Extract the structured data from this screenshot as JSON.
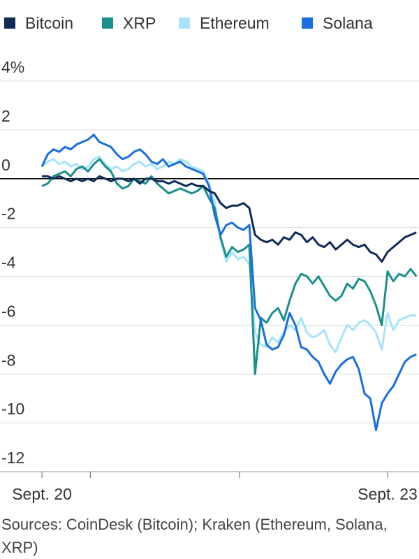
{
  "chart_data": {
    "type": "line",
    "source": "Sources: CoinDesk (Bitcoin); Kraken (Ethereum, Solana, XRP)",
    "x": [
      0,
      0.05,
      0.1,
      0.15,
      0.2,
      0.25,
      0.3,
      0.35,
      0.4,
      0.45,
      0.5,
      0.55,
      0.6,
      0.65,
      0.7,
      0.75,
      0.8,
      0.85,
      0.9,
      0.95,
      1,
      1.05,
      1.1,
      1.15,
      1.2,
      1.25,
      1.3,
      1.35,
      1.4,
      1.45,
      1.5,
      1.55,
      1.6,
      1.65,
      1.7,
      1.75,
      1.8,
      1.85,
      1.9,
      1.95,
      2,
      2.05,
      2.1,
      2.15,
      2.2,
      2.25,
      2.3,
      2.35,
      2.4,
      2.45,
      2.5,
      2.55,
      2.6,
      2.65,
      2.7,
      2.75,
      2.8,
      2.85,
      2.9,
      2.95,
      3,
      3.05,
      3.1,
      3.15,
      3.2,
      3.25
    ],
    "series": [
      {
        "name": "Bitcoin",
        "color": "#0d2b55",
        "values": [
          0.1,
          0.1,
          0.0,
          0.1,
          0.0,
          -0.1,
          0.0,
          -0.1,
          0.0,
          -0.1,
          0.1,
          0.0,
          -0.1,
          0.0,
          0.0,
          -0.1,
          0.0,
          -0.2,
          0.0,
          0.0,
          -0.1,
          -0.1,
          -0.2,
          -0.1,
          -0.2,
          -0.3,
          -0.2,
          -0.3,
          -0.3,
          -0.5,
          -0.6,
          -1.0,
          -1.2,
          -1.1,
          -1.1,
          -1.0,
          -1.2,
          -2.3,
          -2.5,
          -2.6,
          -2.5,
          -2.7,
          -2.4,
          -2.5,
          -2.2,
          -2.3,
          -2.6,
          -2.4,
          -2.7,
          -2.8,
          -2.6,
          -2.9,
          -2.7,
          -2.5,
          -2.7,
          -2.8,
          -2.7,
          -3.0,
          -3.1,
          -3.4,
          -3.0,
          -2.8,
          -2.6,
          -2.4,
          -2.3,
          -2.2
        ]
      },
      {
        "name": "XRP",
        "color": "#1a8f8a",
        "values": [
          -0.3,
          -0.2,
          0.1,
          0.2,
          0.3,
          0.1,
          0.4,
          0.5,
          0.3,
          0.6,
          0.8,
          0.5,
          0.3,
          -0.2,
          -0.4,
          -0.3,
          0.0,
          -0.1,
          -0.2,
          0.1,
          -0.2,
          -0.4,
          -0.6,
          -0.5,
          -0.4,
          -0.5,
          -0.6,
          -0.5,
          -0.3,
          -0.8,
          -1.2,
          -2.4,
          -3.2,
          -2.8,
          -3.0,
          -2.9,
          -2.7,
          -8.0,
          -5.7,
          -5.9,
          -5.5,
          -5.3,
          -5.8,
          -5.0,
          -4.3,
          -3.9,
          -4.0,
          -4.3,
          -4.0,
          -4.4,
          -4.8,
          -5.0,
          -4.8,
          -4.3,
          -4.5,
          -4.1,
          -4.2,
          -4.6,
          -5.2,
          -6.0,
          -3.8,
          -4.2,
          -3.9,
          -4.0,
          -3.7,
          -4.0
        ]
      },
      {
        "name": "Ethereum",
        "color": "#a8e3fa",
        "values": [
          0.5,
          0.7,
          0.8,
          0.6,
          0.7,
          0.5,
          0.6,
          0.4,
          0.5,
          0.8,
          0.9,
          0.6,
          0.4,
          0.5,
          0.3,
          0.4,
          0.6,
          0.7,
          0.5,
          0.6,
          0.4,
          0.5,
          0.7,
          0.6,
          0.8,
          0.7,
          0.5,
          0.4,
          0.3,
          -0.2,
          -1.0,
          -2.5,
          -3.4,
          -3.0,
          -3.3,
          -3.2,
          -3.5,
          -6.3,
          -6.8,
          -6.9,
          -6.5,
          -6.7,
          -6.3,
          -6.0,
          -6.2,
          -5.7,
          -6.3,
          -6.5,
          -6.4,
          -6.2,
          -6.8,
          -7.1,
          -6.5,
          -6.0,
          -6.2,
          -5.9,
          -5.8,
          -6.0,
          -6.3,
          -7.0,
          -5.5,
          -6.2,
          -5.8,
          -5.7,
          -5.6,
          -5.6
        ]
      },
      {
        "name": "Solana",
        "color": "#1a6fe0",
        "values": [
          0.5,
          1.0,
          1.2,
          1.1,
          1.3,
          1.2,
          1.4,
          1.5,
          1.6,
          1.8,
          1.5,
          1.4,
          1.3,
          1.0,
          0.8,
          0.9,
          1.1,
          1.2,
          1.0,
          0.7,
          0.6,
          0.8,
          0.5,
          0.6,
          0.7,
          0.5,
          0.4,
          0.3,
          0.2,
          -0.3,
          -1.5,
          -2.3,
          -1.9,
          -1.8,
          -2.0,
          -2.1,
          -1.9,
          -5.3,
          -5.8,
          -6.8,
          -7.0,
          -6.9,
          -6.4,
          -5.5,
          -6.0,
          -6.9,
          -7.0,
          -7.3,
          -7.5,
          -8.0,
          -8.4,
          -7.9,
          -7.6,
          -7.4,
          -7.3,
          -7.8,
          -8.8,
          -9.0,
          -10.3,
          -9.2,
          -8.8,
          -8.5,
          -8.0,
          -7.5,
          -7.3,
          -7.2
        ]
      }
    ],
    "xlim": [
      -0.364,
      3.273
    ],
    "xticks": [
      {
        "value": 0,
        "label": "Sept. 20"
      },
      {
        "value": 0.42,
        "label": null
      },
      {
        "value": 1.715,
        "label": null
      },
      {
        "value": 3,
        "label": "Sept. 23"
      }
    ],
    "ylim": [
      -12,
      4
    ],
    "yticks": [
      {
        "value": 4,
        "label": "4%"
      },
      2,
      0,
      -2,
      -4,
      -6,
      -8,
      -10,
      -12
    ],
    "grid": true
  }
}
